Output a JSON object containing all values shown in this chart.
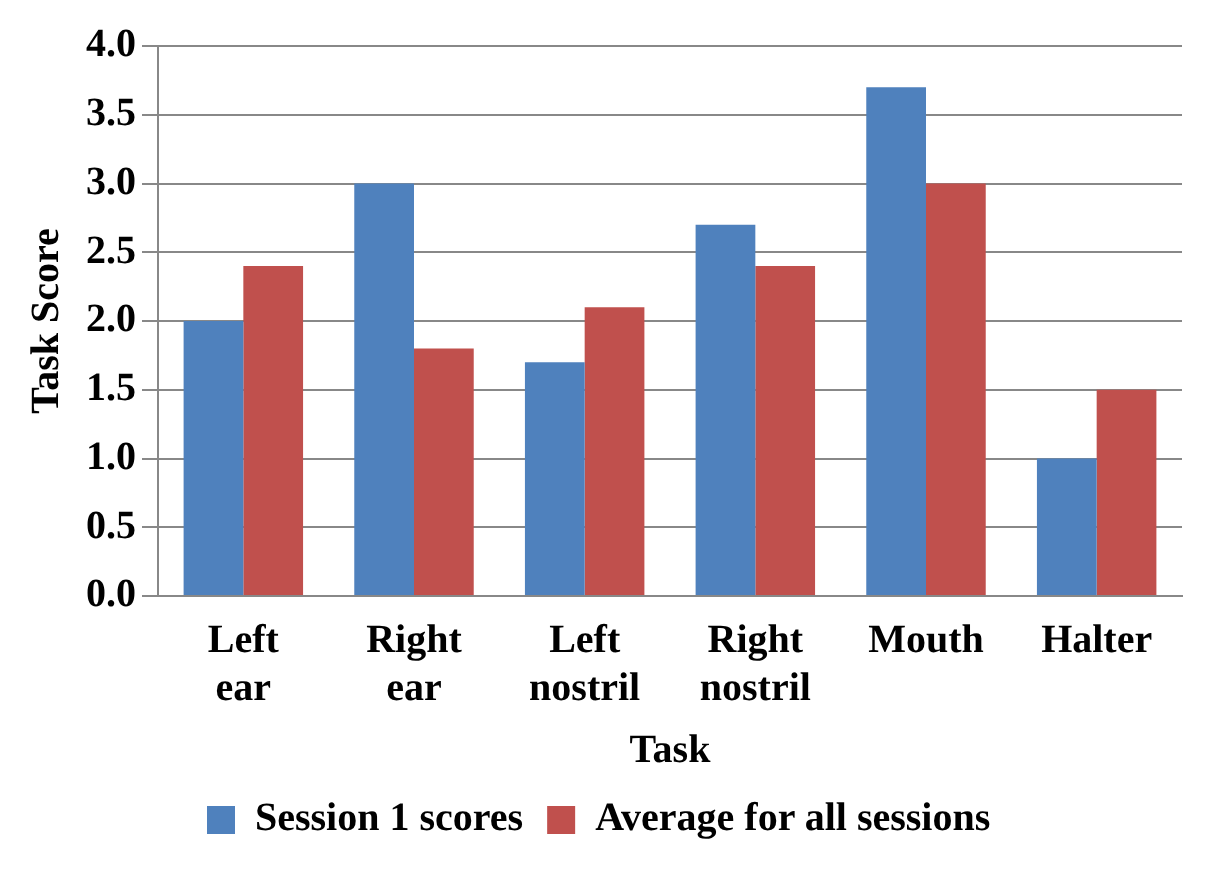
{
  "chart_data": {
    "type": "bar",
    "xlabel": "Task",
    "ylabel": "Task Score",
    "categories": [
      "Left ear",
      "Right ear",
      "Left nostril",
      "Right nostril",
      "Mouth",
      "Halter"
    ],
    "series": [
      {
        "name": "Session 1 scores",
        "color": "#4f81bd",
        "values": [
          2.0,
          3.0,
          1.7,
          2.7,
          3.7,
          1.0
        ]
      },
      {
        "name": "Average for all sessions",
        "color": "#c0504d",
        "values": [
          2.4,
          1.8,
          2.1,
          2.4,
          3.0,
          1.5
        ]
      }
    ],
    "ylim": [
      0,
      4
    ],
    "yticks": [
      {
        "value": 0,
        "label": "0.0"
      },
      {
        "value": 0.5,
        "label": "0.5"
      },
      {
        "value": 1,
        "label": "1.0"
      },
      {
        "value": 1.5,
        "label": "1.5"
      },
      {
        "value": 2,
        "label": "2.0"
      },
      {
        "value": 2.5,
        "label": "2.5"
      },
      {
        "value": 3,
        "label": "3.0"
      },
      {
        "value": 3.5,
        "label": "3.5"
      },
      {
        "value": 4,
        "label": "4.0"
      }
    ],
    "grid": "y",
    "legend": "bottom"
  }
}
